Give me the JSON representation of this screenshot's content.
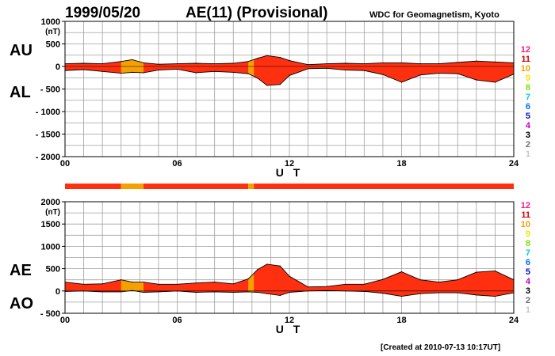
{
  "header": {
    "date": "1999/05/20",
    "title": "AE(11) (Provisional)",
    "organization": "WDC for Geomagnetism, Kyoto"
  },
  "footer": {
    "created": "[Created at 2010-07-13 10:17UT]"
  },
  "colors": {
    "fill_red": "#ff3010",
    "fill_orange": "#f5a000",
    "grid": "#a0a0a0",
    "axis": "#000000"
  },
  "legend": {
    "items": [
      {
        "label": "12",
        "color": "#ff1a8c"
      },
      {
        "label": "11",
        "color": "#e00000"
      },
      {
        "label": "10",
        "color": "#f5a000"
      },
      {
        "label": "9",
        "color": "#e8e800"
      },
      {
        "label": "8",
        "color": "#80e000"
      },
      {
        "label": "7",
        "color": "#00d0d0"
      },
      {
        "label": "6",
        "color": "#0070ff"
      },
      {
        "label": "5",
        "color": "#1010c0"
      },
      {
        "label": "4",
        "color": "#c000c0"
      },
      {
        "label": "3",
        "color": "#000000"
      },
      {
        "label": "2",
        "color": "#707070"
      },
      {
        "label": "1",
        "color": "#c8c8c8"
      }
    ]
  },
  "station_bar": {
    "xlim": [
      0,
      24
    ],
    "segments": [
      {
        "start": 0,
        "end": 3.0,
        "stations": 11
      },
      {
        "start": 3.0,
        "end": 4.2,
        "stations": 10
      },
      {
        "start": 4.2,
        "end": 9.8,
        "stations": 11
      },
      {
        "start": 9.8,
        "end": 10.1,
        "stations": 10
      },
      {
        "start": 10.1,
        "end": 24,
        "stations": 11
      }
    ]
  },
  "chart_data": [
    {
      "type": "area",
      "xlabel": "U T",
      "ylabel": "(nT)",
      "upper_label": "AU",
      "lower_label": "AL",
      "xlim": [
        0,
        24
      ],
      "ylim": [
        -2000,
        1000
      ],
      "xticks": [
        "00",
        "06",
        "12",
        "18",
        "24"
      ],
      "yticks": [
        "1000",
        "500",
        "0",
        "- 500",
        "- 1000",
        "- 1500",
        "- 2000"
      ],
      "yticks_values": [
        1000,
        500,
        0,
        -500,
        -1000,
        -1500,
        -2000
      ],
      "grid": true,
      "x": [
        0,
        1,
        2,
        3,
        3.6,
        4.2,
        5,
        6,
        7,
        8,
        9,
        9.8,
        10.3,
        10.8,
        11.5,
        12,
        13,
        14,
        15,
        16,
        17,
        18,
        19,
        20,
        21,
        22,
        23,
        24
      ],
      "series": [
        {
          "name": "AU",
          "values": [
            60,
            70,
            60,
            110,
            150,
            80,
            50,
            60,
            70,
            60,
            70,
            110,
            180,
            240,
            200,
            130,
            40,
            60,
            70,
            60,
            80,
            80,
            60,
            60,
            90,
            120,
            100,
            80
          ]
        },
        {
          "name": "AL",
          "values": [
            -90,
            -70,
            -110,
            -150,
            -130,
            -140,
            -80,
            -60,
            -140,
            -110,
            -130,
            -160,
            -260,
            -420,
            -400,
            -200,
            -50,
            -40,
            -80,
            -90,
            -180,
            -350,
            -190,
            -150,
            -160,
            -300,
            -350,
            -170
          ]
        }
      ]
    },
    {
      "type": "area",
      "xlabel": "U T",
      "ylabel": "(nT)",
      "upper_label": "AE",
      "lower_label": "AO",
      "xlim": [
        0,
        24
      ],
      "ylim": [
        -500,
        2000
      ],
      "xticks": [
        "00",
        "06",
        "12",
        "18",
        "24"
      ],
      "yticks": [
        "2000",
        "1500",
        "1000",
        "500",
        "0",
        "- 500"
      ],
      "yticks_values": [
        2000,
        1500,
        1000,
        500,
        0,
        -500
      ],
      "grid": true,
      "x": [
        0,
        1,
        2,
        3,
        3.6,
        4.2,
        5,
        6,
        7,
        8,
        9,
        9.8,
        10.3,
        10.8,
        11.5,
        12,
        13,
        14,
        15,
        16,
        17,
        18,
        19,
        20,
        21,
        22,
        23,
        24
      ],
      "series": [
        {
          "name": "AE",
          "values": [
            200,
            150,
            160,
            250,
            200,
            200,
            150,
            150,
            180,
            200,
            160,
            270,
            480,
            600,
            560,
            330,
            90,
            100,
            150,
            150,
            260,
            430,
            250,
            200,
            250,
            420,
            450,
            250
          ]
        },
        {
          "name": "AO",
          "values": [
            -10,
            0,
            -20,
            -20,
            10,
            -30,
            -20,
            0,
            -30,
            -20,
            -30,
            -20,
            -30,
            -60,
            -100,
            -30,
            0,
            10,
            0,
            -10,
            -50,
            -120,
            -60,
            -40,
            -40,
            -90,
            -120,
            -40
          ]
        }
      ]
    }
  ]
}
